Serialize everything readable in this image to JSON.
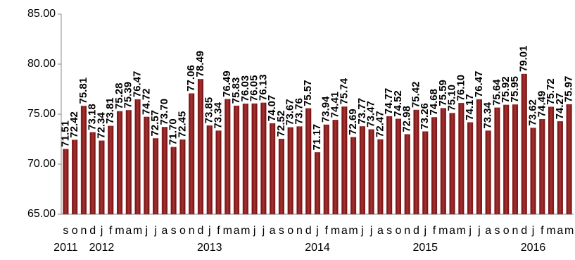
{
  "chart_data": {
    "type": "bar",
    "categories": [
      "s",
      "o",
      "n",
      "d",
      "j",
      "f",
      "m",
      "a",
      "m",
      "j",
      "j",
      "a",
      "s",
      "o",
      "n",
      "d",
      "j",
      "f",
      "m",
      "a",
      "m",
      "j",
      "j",
      "a",
      "s",
      "o",
      "n",
      "d",
      "j",
      "f",
      "m",
      "a",
      "m",
      "j",
      "j",
      "a",
      "s",
      "o",
      "n",
      "d",
      "j",
      "f",
      "m",
      "a",
      "m",
      "j",
      "j",
      "a",
      "s",
      "o",
      "n",
      "d",
      "j",
      "f",
      "m",
      "a",
      "m"
    ],
    "year_labels": [
      "2011",
      null,
      null,
      null,
      "2012",
      null,
      null,
      null,
      null,
      null,
      null,
      null,
      null,
      null,
      null,
      null,
      "2013",
      null,
      null,
      null,
      null,
      null,
      null,
      null,
      null,
      null,
      null,
      null,
      "2014",
      null,
      null,
      null,
      null,
      null,
      null,
      null,
      null,
      null,
      null,
      null,
      "2015",
      null,
      null,
      null,
      null,
      null,
      null,
      null,
      null,
      null,
      null,
      null,
      "2016",
      null,
      null,
      null,
      null
    ],
    "values": [
      71.51,
      72.42,
      75.81,
      73.18,
      72.34,
      73.81,
      75.28,
      75.39,
      76.47,
      74.72,
      72.57,
      73.7,
      71.7,
      72.45,
      77.06,
      78.49,
      73.85,
      73.34,
      76.49,
      75.83,
      76.03,
      76.05,
      76.13,
      74.07,
      72.52,
      73.67,
      73.76,
      75.57,
      71.17,
      73.94,
      74.41,
      75.74,
      72.69,
      73.77,
      73.47,
      72.47,
      74.77,
      74.52,
      72.98,
      75.42,
      73.26,
      74.68,
      75.59,
      75.1,
      76.1,
      74.17,
      76.47,
      73.34,
      75.64,
      75.92,
      75.95,
      79.01,
      73.62,
      74.49,
      75.72,
      74.27,
      75.97
    ],
    "value_labels": [
      "71.51",
      "72.42",
      "75.81",
      "73.18",
      "72.34",
      "73.81",
      "75.28",
      "75.39",
      "76.47",
      "74.72",
      "72.57",
      "73.70",
      "71.70",
      "72.45",
      "77.06",
      "78.49",
      "73.85",
      "73.34",
      "76.49",
      "75.83",
      "76.03",
      "76.05",
      "76.13",
      "74.07",
      "72.52",
      "73.67",
      "73.76",
      "75.57",
      "71.17",
      "73.94",
      "74.41",
      "75.74",
      "72.69",
      "73.77",
      "73.47",
      "72.47",
      "74.77",
      "74.52",
      "72.98",
      "75.42",
      "73.26",
      "74.68",
      "75.59",
      "75.10",
      "76.10",
      "74.17",
      "76.47",
      "73.34",
      "75.64",
      "75.92",
      "75.95",
      "79.01",
      "73.62",
      "74.49",
      "75.72",
      "74.27",
      "75.97"
    ],
    "color": "#8b1c1c",
    "ylim": [
      65,
      85
    ],
    "yticks": [
      {
        "value": 65,
        "label": "65.00"
      },
      {
        "value": 70,
        "label": "70.00"
      },
      {
        "value": 75,
        "label": "75.00"
      },
      {
        "value": 80,
        "label": "80.00"
      },
      {
        "value": 85,
        "label": "85.00"
      }
    ],
    "grid": false
  }
}
